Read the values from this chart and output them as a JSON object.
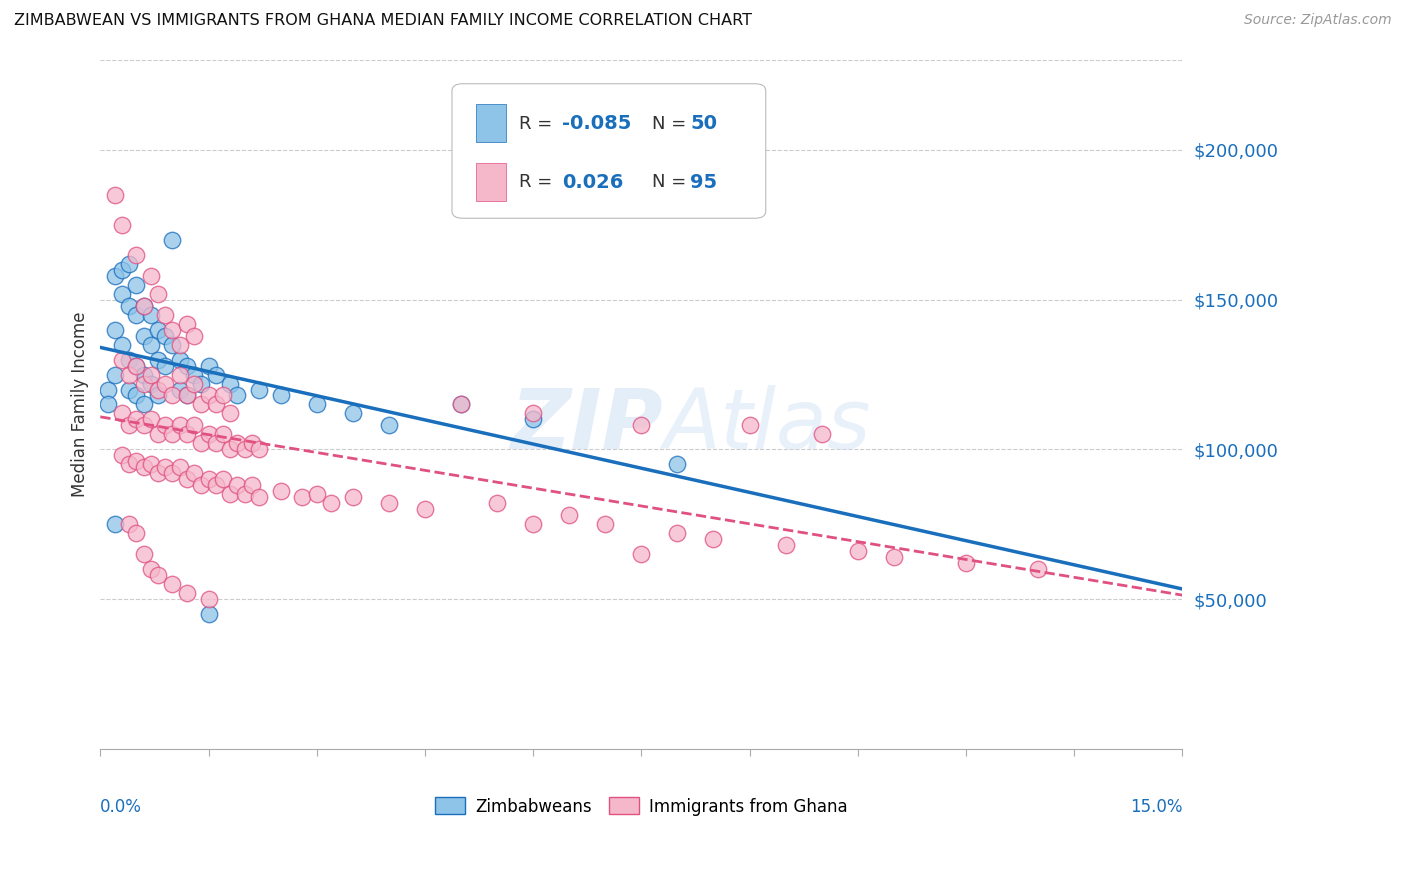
{
  "title": "ZIMBABWEAN VS IMMIGRANTS FROM GHANA MEDIAN FAMILY INCOME CORRELATION CHART",
  "source": "Source: ZipAtlas.com",
  "ylabel": "Median Family Income",
  "yticks": [
    50000,
    100000,
    150000,
    200000
  ],
  "ytick_labels": [
    "$50,000",
    "$100,000",
    "$150,000",
    "$200,000"
  ],
  "xlim": [
    0.0,
    0.15
  ],
  "ylim": [
    0,
    230000
  ],
  "scatter_color_zim": "#8ec4e8",
  "scatter_color_gha": "#f5b8cb",
  "line_color_zim": "#1a6fbd",
  "line_color_gha": "#e05080",
  "watermark": "ZIPAtlas",
  "background_color": "#ffffff",
  "zim_points": [
    [
      0.001,
      120000
    ],
    [
      0.001,
      115000
    ],
    [
      0.002,
      158000
    ],
    [
      0.002,
      140000
    ],
    [
      0.002,
      125000
    ],
    [
      0.003,
      160000
    ],
    [
      0.003,
      152000
    ],
    [
      0.003,
      135000
    ],
    [
      0.004,
      162000
    ],
    [
      0.004,
      148000
    ],
    [
      0.004,
      130000
    ],
    [
      0.004,
      120000
    ],
    [
      0.005,
      155000
    ],
    [
      0.005,
      145000
    ],
    [
      0.005,
      128000
    ],
    [
      0.005,
      118000
    ],
    [
      0.006,
      148000
    ],
    [
      0.006,
      138000
    ],
    [
      0.006,
      125000
    ],
    [
      0.006,
      115000
    ],
    [
      0.007,
      145000
    ],
    [
      0.007,
      135000
    ],
    [
      0.007,
      122000
    ],
    [
      0.008,
      140000
    ],
    [
      0.008,
      130000
    ],
    [
      0.008,
      118000
    ],
    [
      0.009,
      138000
    ],
    [
      0.009,
      128000
    ],
    [
      0.01,
      170000
    ],
    [
      0.01,
      135000
    ],
    [
      0.011,
      130000
    ],
    [
      0.011,
      120000
    ],
    [
      0.012,
      128000
    ],
    [
      0.012,
      118000
    ],
    [
      0.013,
      125000
    ],
    [
      0.014,
      122000
    ],
    [
      0.015,
      128000
    ],
    [
      0.016,
      125000
    ],
    [
      0.018,
      122000
    ],
    [
      0.019,
      118000
    ],
    [
      0.022,
      120000
    ],
    [
      0.025,
      118000
    ],
    [
      0.03,
      115000
    ],
    [
      0.035,
      112000
    ],
    [
      0.04,
      108000
    ],
    [
      0.05,
      115000
    ],
    [
      0.06,
      110000
    ],
    [
      0.08,
      95000
    ],
    [
      0.015,
      45000
    ],
    [
      0.002,
      75000
    ]
  ],
  "gha_points": [
    [
      0.002,
      185000
    ],
    [
      0.003,
      175000
    ],
    [
      0.005,
      165000
    ],
    [
      0.006,
      148000
    ],
    [
      0.007,
      158000
    ],
    [
      0.008,
      152000
    ],
    [
      0.009,
      145000
    ],
    [
      0.01,
      140000
    ],
    [
      0.011,
      135000
    ],
    [
      0.012,
      142000
    ],
    [
      0.013,
      138000
    ],
    [
      0.003,
      130000
    ],
    [
      0.004,
      125000
    ],
    [
      0.005,
      128000
    ],
    [
      0.006,
      122000
    ],
    [
      0.007,
      125000
    ],
    [
      0.008,
      120000
    ],
    [
      0.009,
      122000
    ],
    [
      0.01,
      118000
    ],
    [
      0.011,
      125000
    ],
    [
      0.012,
      118000
    ],
    [
      0.013,
      122000
    ],
    [
      0.014,
      115000
    ],
    [
      0.015,
      118000
    ],
    [
      0.016,
      115000
    ],
    [
      0.017,
      118000
    ],
    [
      0.018,
      112000
    ],
    [
      0.003,
      112000
    ],
    [
      0.004,
      108000
    ],
    [
      0.005,
      110000
    ],
    [
      0.006,
      108000
    ],
    [
      0.007,
      110000
    ],
    [
      0.008,
      105000
    ],
    [
      0.009,
      108000
    ],
    [
      0.01,
      105000
    ],
    [
      0.011,
      108000
    ],
    [
      0.012,
      105000
    ],
    [
      0.013,
      108000
    ],
    [
      0.014,
      102000
    ],
    [
      0.015,
      105000
    ],
    [
      0.016,
      102000
    ],
    [
      0.017,
      105000
    ],
    [
      0.018,
      100000
    ],
    [
      0.019,
      102000
    ],
    [
      0.02,
      100000
    ],
    [
      0.021,
      102000
    ],
    [
      0.022,
      100000
    ],
    [
      0.003,
      98000
    ],
    [
      0.004,
      95000
    ],
    [
      0.005,
      96000
    ],
    [
      0.006,
      94000
    ],
    [
      0.007,
      95000
    ],
    [
      0.008,
      92000
    ],
    [
      0.009,
      94000
    ],
    [
      0.01,
      92000
    ],
    [
      0.011,
      94000
    ],
    [
      0.012,
      90000
    ],
    [
      0.013,
      92000
    ],
    [
      0.014,
      88000
    ],
    [
      0.015,
      90000
    ],
    [
      0.016,
      88000
    ],
    [
      0.017,
      90000
    ],
    [
      0.018,
      85000
    ],
    [
      0.019,
      88000
    ],
    [
      0.02,
      85000
    ],
    [
      0.021,
      88000
    ],
    [
      0.022,
      84000
    ],
    [
      0.025,
      86000
    ],
    [
      0.028,
      84000
    ],
    [
      0.03,
      85000
    ],
    [
      0.032,
      82000
    ],
    [
      0.035,
      84000
    ],
    [
      0.04,
      82000
    ],
    [
      0.045,
      80000
    ],
    [
      0.05,
      115000
    ],
    [
      0.055,
      82000
    ],
    [
      0.06,
      112000
    ],
    [
      0.065,
      78000
    ],
    [
      0.07,
      75000
    ],
    [
      0.075,
      108000
    ],
    [
      0.08,
      72000
    ],
    [
      0.085,
      70000
    ],
    [
      0.09,
      108000
    ],
    [
      0.095,
      68000
    ],
    [
      0.1,
      105000
    ],
    [
      0.105,
      66000
    ],
    [
      0.11,
      64000
    ],
    [
      0.12,
      62000
    ],
    [
      0.13,
      60000
    ],
    [
      0.004,
      75000
    ],
    [
      0.005,
      72000
    ],
    [
      0.006,
      65000
    ],
    [
      0.007,
      60000
    ],
    [
      0.008,
      58000
    ],
    [
      0.01,
      55000
    ],
    [
      0.012,
      52000
    ],
    [
      0.015,
      50000
    ],
    [
      0.06,
      75000
    ],
    [
      0.075,
      65000
    ]
  ]
}
